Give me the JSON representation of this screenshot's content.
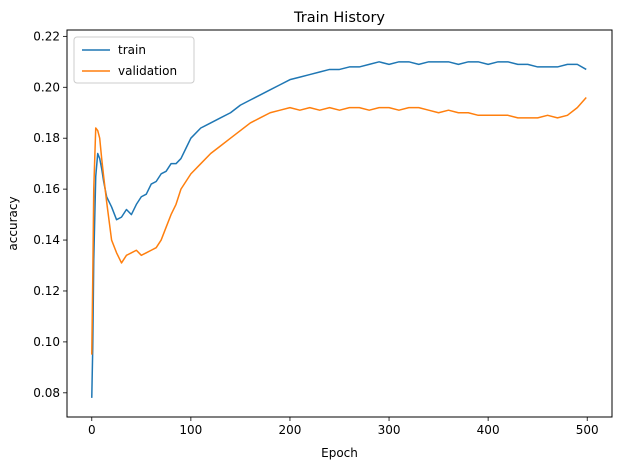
{
  "chart_data": {
    "type": "line",
    "title": "Train History",
    "xlabel": "Epoch",
    "ylabel": "accuracy",
    "xlim": [
      -25,
      525
    ],
    "ylim": [
      0.0705,
      0.2225
    ],
    "xticks": [
      0,
      100,
      200,
      300,
      400,
      500
    ],
    "yticks": [
      0.08,
      0.1,
      0.12,
      0.14,
      0.16,
      0.18,
      0.2,
      0.22
    ],
    "xtick_labels": [
      "0",
      "100",
      "200",
      "300",
      "400",
      "500"
    ],
    "ytick_labels": [
      "0.08",
      "0.10",
      "0.12",
      "0.14",
      "0.16",
      "0.18",
      "0.20",
      "0.22"
    ],
    "grid": false,
    "legend": "upper left",
    "series": [
      {
        "name": "train",
        "color": "#1f77b4",
        "x": [
          0,
          1,
          2,
          4,
          6,
          8,
          10,
          12,
          15,
          20,
          25,
          30,
          35,
          40,
          45,
          50,
          55,
          60,
          65,
          70,
          75,
          80,
          85,
          90,
          95,
          100,
          110,
          120,
          130,
          140,
          150,
          160,
          170,
          180,
          190,
          200,
          210,
          220,
          230,
          240,
          250,
          260,
          270,
          280,
          290,
          300,
          310,
          320,
          330,
          340,
          350,
          360,
          370,
          380,
          390,
          400,
          410,
          420,
          430,
          440,
          450,
          460,
          470,
          480,
          490,
          499
        ],
        "y": [
          0.078,
          0.098,
          0.132,
          0.165,
          0.174,
          0.172,
          0.168,
          0.163,
          0.157,
          0.153,
          0.148,
          0.149,
          0.152,
          0.15,
          0.154,
          0.157,
          0.158,
          0.162,
          0.163,
          0.166,
          0.167,
          0.17,
          0.17,
          0.172,
          0.176,
          0.18,
          0.184,
          0.186,
          0.188,
          0.19,
          0.193,
          0.195,
          0.197,
          0.199,
          0.201,
          0.203,
          0.204,
          0.205,
          0.206,
          0.207,
          0.207,
          0.208,
          0.208,
          0.209,
          0.21,
          0.209,
          0.21,
          0.21,
          0.209,
          0.21,
          0.21,
          0.21,
          0.209,
          0.21,
          0.21,
          0.209,
          0.21,
          0.21,
          0.209,
          0.209,
          0.208,
          0.208,
          0.208,
          0.209,
          0.209,
          0.207
        ]
      },
      {
        "name": "validation",
        "color": "#ff7f0e",
        "x": [
          0,
          1,
          2,
          4,
          6,
          8,
          10,
          12,
          15,
          20,
          25,
          30,
          35,
          40,
          45,
          50,
          55,
          60,
          65,
          70,
          75,
          80,
          85,
          90,
          95,
          100,
          110,
          120,
          130,
          140,
          150,
          160,
          170,
          180,
          190,
          200,
          210,
          220,
          230,
          240,
          250,
          260,
          270,
          280,
          290,
          300,
          310,
          320,
          330,
          340,
          350,
          360,
          370,
          380,
          390,
          400,
          410,
          420,
          430,
          440,
          450,
          460,
          470,
          480,
          490,
          499
        ],
        "y": [
          0.095,
          0.125,
          0.16,
          0.184,
          0.183,
          0.18,
          0.172,
          0.165,
          0.155,
          0.14,
          0.135,
          0.131,
          0.134,
          0.135,
          0.136,
          0.134,
          0.135,
          0.136,
          0.137,
          0.14,
          0.145,
          0.15,
          0.154,
          0.16,
          0.163,
          0.166,
          0.17,
          0.174,
          0.177,
          0.18,
          0.183,
          0.186,
          0.188,
          0.19,
          0.191,
          0.192,
          0.191,
          0.192,
          0.191,
          0.192,
          0.191,
          0.192,
          0.192,
          0.191,
          0.192,
          0.192,
          0.191,
          0.192,
          0.192,
          0.191,
          0.19,
          0.191,
          0.19,
          0.19,
          0.189,
          0.189,
          0.189,
          0.189,
          0.188,
          0.188,
          0.188,
          0.189,
          0.188,
          0.189,
          0.192,
          0.196
        ]
      }
    ]
  }
}
